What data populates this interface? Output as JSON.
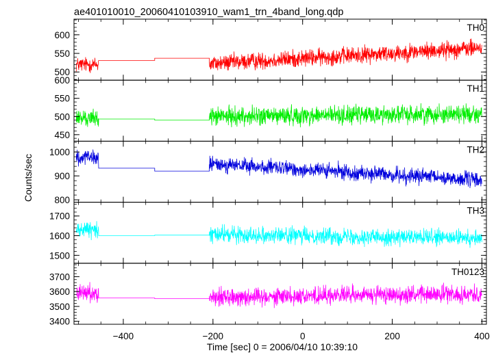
{
  "chart_data": {
    "type": "line",
    "title": "ae401010010_20060410103910_wam1_trn_4band_long.qdp",
    "xlabel": "Time [sec] 0 = 2006/04/10 10:39:10",
    "ylabel": "Counts/sec",
    "xlim": [
      -510,
      410
    ],
    "x_ticks": [
      -400,
      -200,
      0,
      200,
      400
    ],
    "grid": false,
    "legend": "none",
    "segments": {
      "data_early": [
        -505,
        -455
      ],
      "gap1": [
        -455,
        -330
      ],
      "gap2": [
        -330,
        -208
      ],
      "data_late": [
        -208,
        400
      ]
    },
    "series": [
      {
        "name": "TH0",
        "color": "#ff0000",
        "ylim": [
          478,
          642
        ],
        "y_ticks": [
          500,
          550,
          600
        ],
        "early_mean": 520,
        "early_spread": 30,
        "gap_levels": [
          531,
          537
        ],
        "late_start": 522,
        "late_end": 565,
        "late_spread": 34
      },
      {
        "name": "TH1",
        "color": "#00ee00",
        "ylim": [
          432,
          600
        ],
        "y_ticks": [
          450,
          500,
          550,
          600
        ],
        "early_mean": 495,
        "early_spread": 33,
        "gap_levels": [
          493,
          490
        ],
        "late_start": 500,
        "late_end": 508,
        "late_spread": 38
      },
      {
        "name": "TH2",
        "color": "#0000dd",
        "ylim": [
          790,
          1045
        ],
        "y_ticks": [
          800,
          900,
          1000
        ],
        "early_mean": 975,
        "early_spread": 45,
        "gap_levels": [
          932,
          920
        ],
        "late_start": 950,
        "late_end": 882,
        "late_spread": 48
      },
      {
        "name": "TH3",
        "color": "#00ffff",
        "ylim": [
          1460,
          1770
        ],
        "y_ticks": [
          1500,
          1600,
          1700
        ],
        "early_mean": 1630,
        "early_spread": 60,
        "gap_levels": [
          1600,
          1603
        ],
        "late_start": 1608,
        "late_end": 1585,
        "late_spread": 62
      },
      {
        "name": "TH0123",
        "color": "#ff00ff",
        "ylim": [
          3380,
          3790
        ],
        "y_ticks": [
          3400,
          3500,
          3600,
          3700
        ],
        "early_mean": 3590,
        "early_spread": 85,
        "gap_levels": [
          3557,
          3552
        ],
        "late_start": 3565,
        "late_end": 3585,
        "late_spread": 88
      }
    ]
  }
}
